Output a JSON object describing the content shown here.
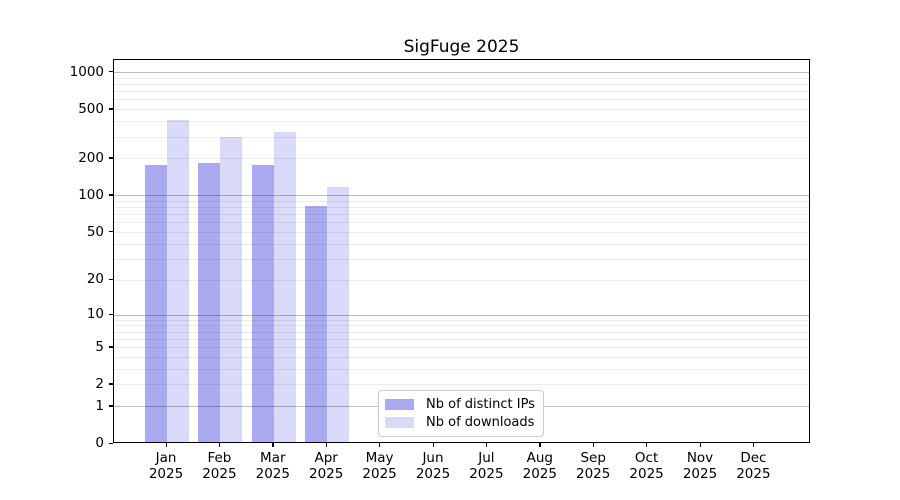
{
  "chart_data": {
    "type": "bar",
    "title": "SigFuge 2025",
    "year_label": "2025",
    "categories": [
      "Jan",
      "Feb",
      "Mar",
      "Apr",
      "May",
      "Jun",
      "Jul",
      "Aug",
      "Sep",
      "Oct",
      "Nov",
      "Dec"
    ],
    "series": [
      {
        "name": "Nb of distinct IPs",
        "color": "#aaaaf0",
        "values": [
          173,
          179,
          173,
          79,
          null,
          null,
          null,
          null,
          null,
          null,
          null,
          null
        ]
      },
      {
        "name": "Nb of downloads",
        "color": "#d9d9f8",
        "values": [
          395,
          290,
          320,
          114,
          null,
          null,
          null,
          null,
          null,
          null,
          null,
          null
        ]
      }
    ],
    "y_ticks": [
      0,
      1,
      2,
      5,
      10,
      20,
      50,
      100,
      200,
      500,
      1000
    ],
    "y_scale": "log10(1+x)",
    "ylim": [
      0,
      1300
    ],
    "xlabel": "",
    "ylabel": "",
    "grid": "horizontal log minor + major, drawn above bars",
    "legend_position": "lower center inside plot",
    "colors": {
      "axis": "#000000",
      "major_grid": "#c3c3c3",
      "minor_grid": "#ececec",
      "background": "#ffffff"
    }
  }
}
